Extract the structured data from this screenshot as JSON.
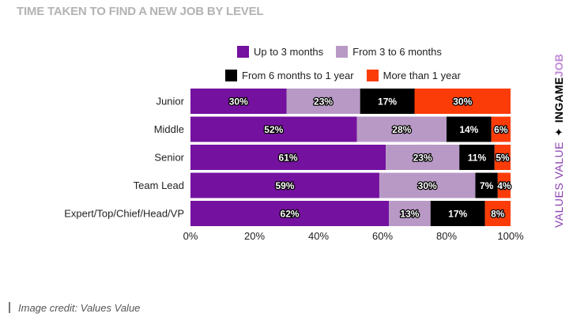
{
  "chart_data": {
    "type": "bar",
    "orientation": "horizontal",
    "stacked": true,
    "title": "TIME TAKEN TO FIND A NEW JOB BY LEVEL",
    "categories": [
      "Junior",
      "Middle",
      "Senior",
      "Team Lead",
      "Expert/Top/Chief/Head/VP"
    ],
    "series": [
      {
        "name": "Up to 3 months",
        "color": "#74119f",
        "values": [
          30,
          52,
          61,
          59,
          62
        ],
        "labels": [
          "30%",
          "52%",
          "61%",
          "59%",
          "62%"
        ]
      },
      {
        "name": "From 3 to 6 months",
        "color": "#b899c6",
        "values": [
          23,
          28,
          23,
          30,
          13
        ],
        "labels": [
          "23%",
          "28%",
          "23%",
          "30%",
          "13%"
        ]
      },
      {
        "name": "From 6 months to 1 year",
        "color": "#000000",
        "values": [
          17,
          14,
          11,
          7,
          17
        ],
        "labels": [
          "17%",
          "14%",
          "11%",
          "7%",
          "17%"
        ]
      },
      {
        "name": "More than 1 year",
        "color": "#fb3c08",
        "values": [
          30,
          6,
          5,
          4,
          8
        ],
        "labels": [
          "30%",
          "6%",
          "5%",
          "4%",
          "8%"
        ]
      }
    ],
    "xlim": [
      0,
      100
    ],
    "x_ticks": [
      "0%",
      "20%",
      "40%",
      "60%",
      "80%",
      "100%"
    ],
    "grid": false,
    "legend_position": "top"
  },
  "brand": {
    "part1": "VALUES VALUE",
    "separator": "✦",
    "part2": "INGAME",
    "part3": "JOB"
  },
  "credit": "Image credit: Values Value"
}
